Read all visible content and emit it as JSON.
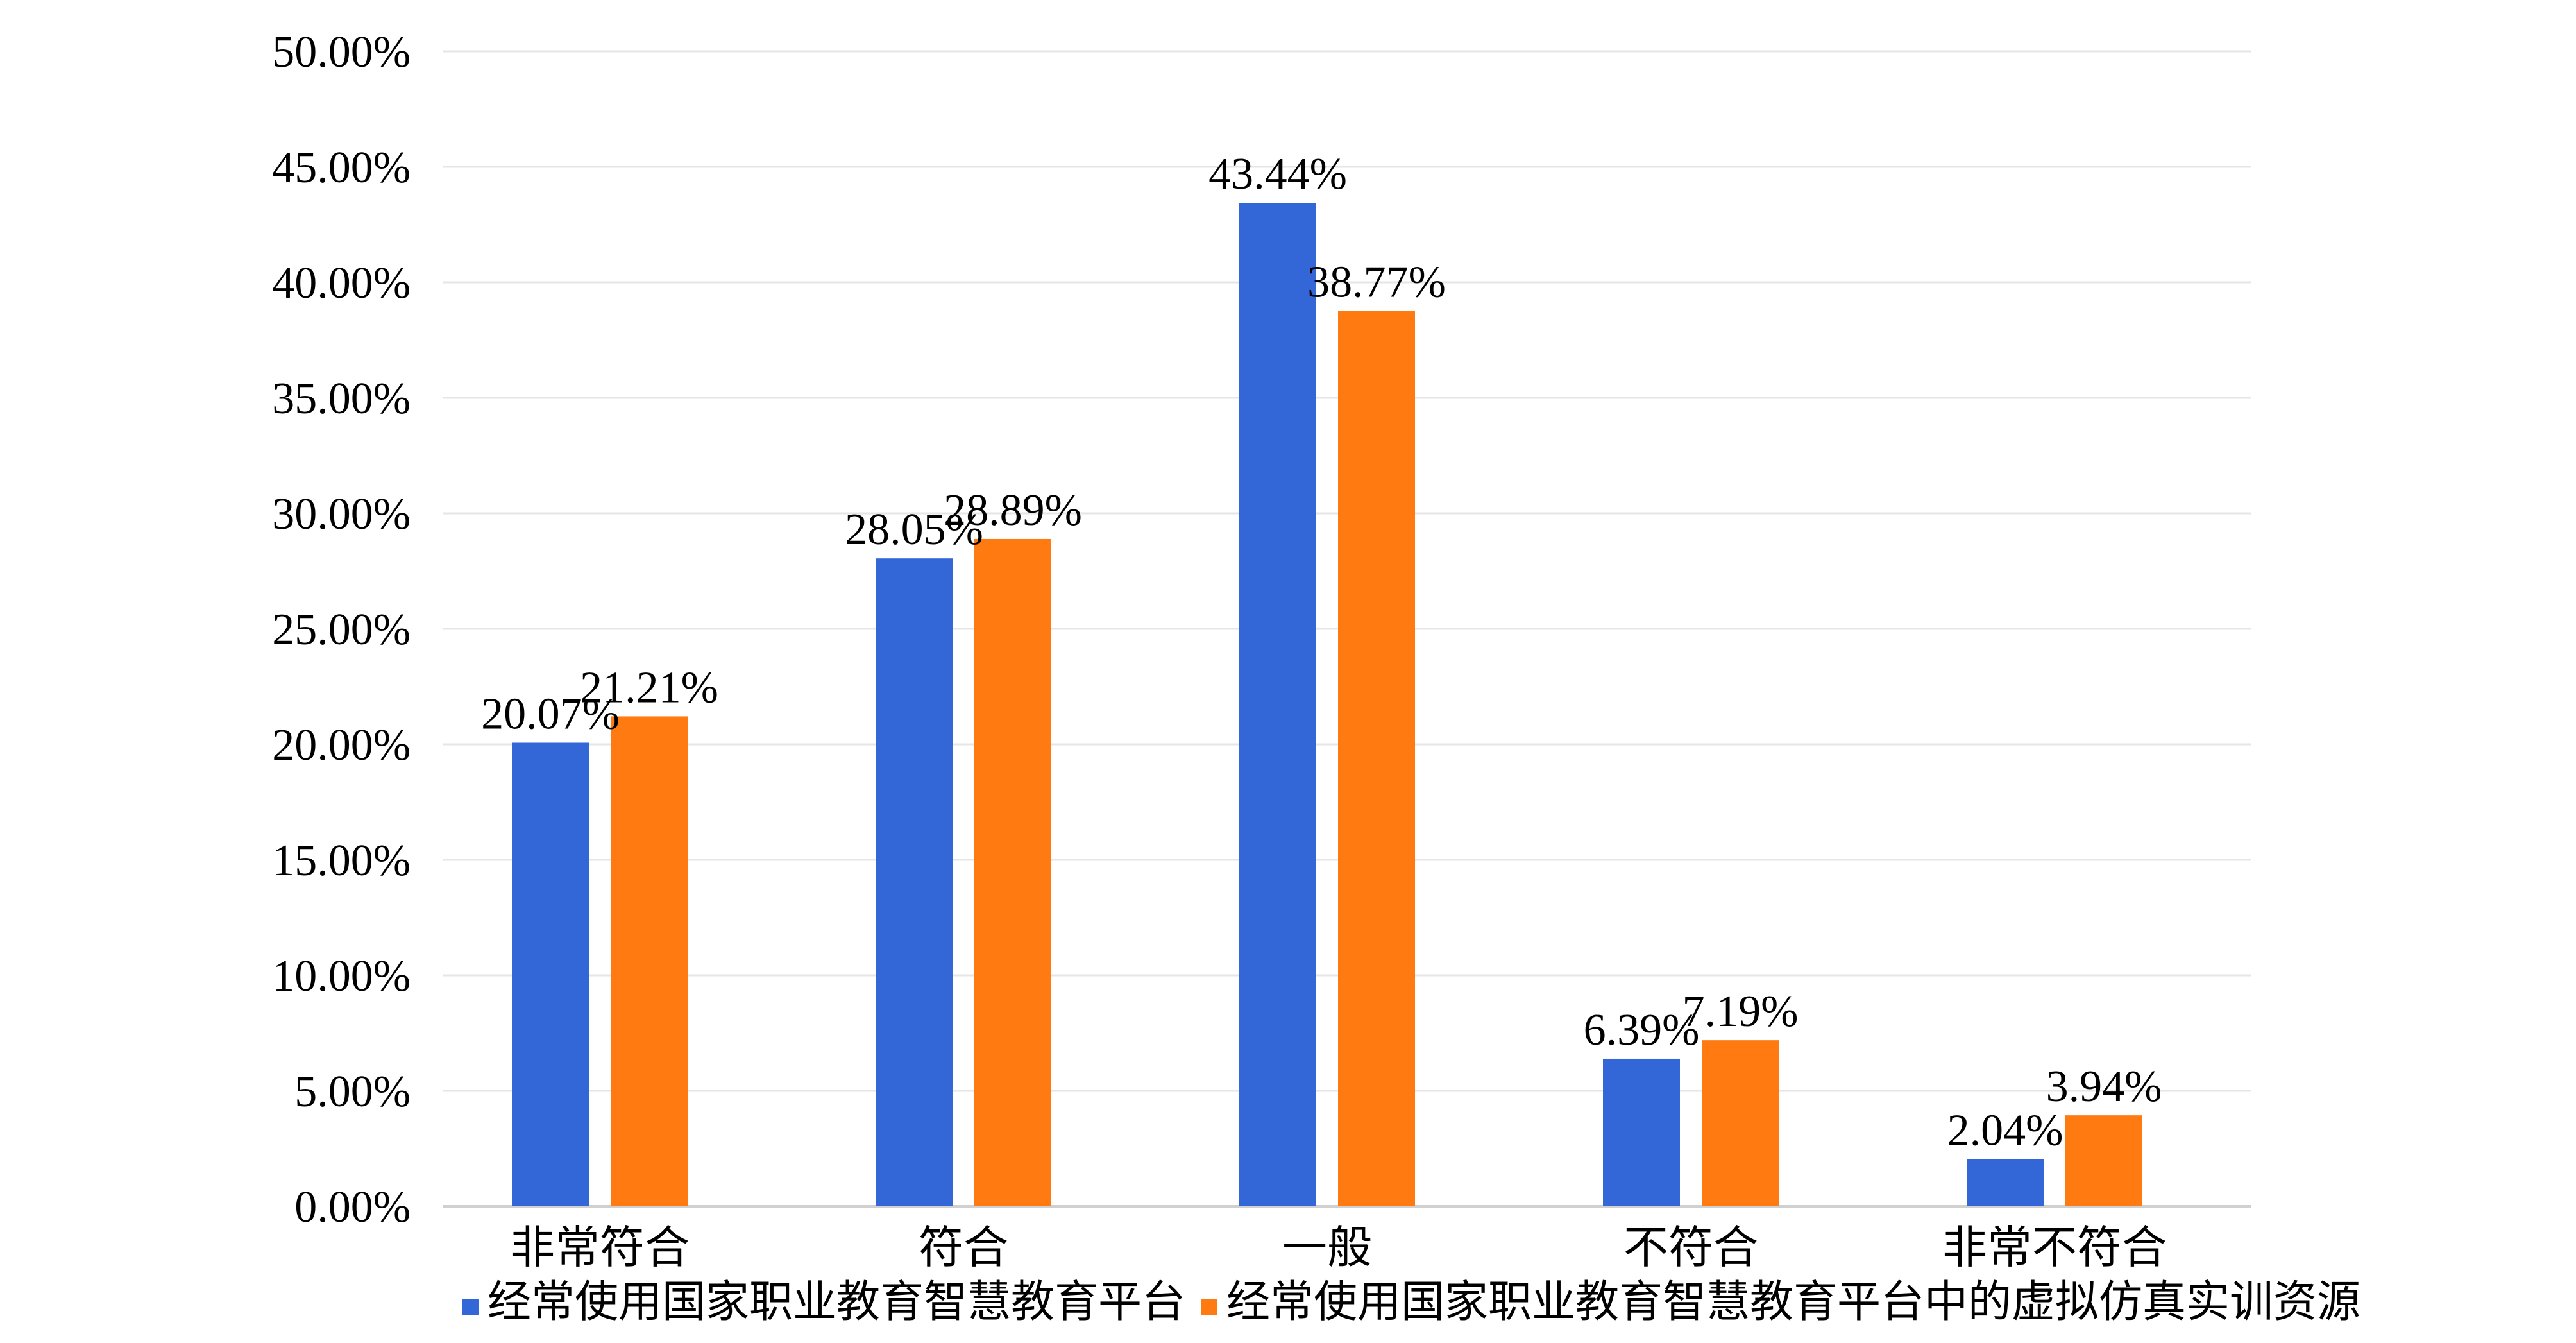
{
  "chart_data": {
    "type": "bar",
    "categories": [
      "非常符合",
      "符合",
      "一般",
      "不符合",
      "非常不符合"
    ],
    "series": [
      {
        "name": "经常使用国家职业教育智慧教育平台",
        "color": "#3366d6",
        "values": [
          20.07,
          28.05,
          43.44,
          6.39,
          2.04
        ],
        "labels": [
          "20.07%",
          "28.05%",
          "43.44%",
          "6.39%",
          "2.04%"
        ]
      },
      {
        "name": "经常使用国家职业教育智慧教育平台中的虚拟仿真实训资源",
        "color": "#ff7a10",
        "values": [
          21.21,
          28.89,
          38.77,
          7.19,
          3.94
        ],
        "labels": [
          "21.21%",
          "28.89%",
          "38.77%",
          "7.19%",
          "3.94%"
        ]
      }
    ],
    "y_ticks": [
      "0.00%",
      "5.00%",
      "10.00%",
      "15.00%",
      "20.00%",
      "25.00%",
      "30.00%",
      "35.00%",
      "40.00%",
      "45.00%",
      "50.00%"
    ],
    "ylim": [
      0,
      50
    ],
    "grid": true,
    "legend_position": "bottom"
  }
}
